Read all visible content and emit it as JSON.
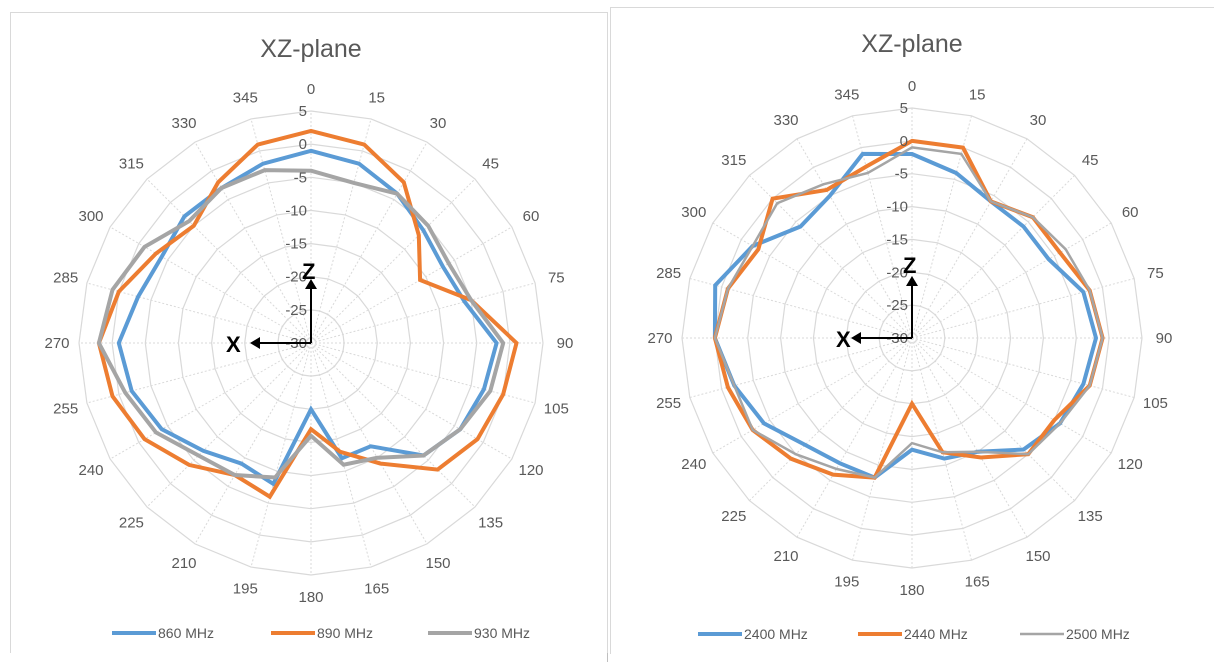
{
  "chart_data": [
    {
      "type": "radar",
      "title": "XZ-plane",
      "angle_labels": [
        "0",
        "15",
        "30",
        "45",
        "60",
        "75",
        "90",
        "105",
        "120",
        "135",
        "150",
        "165",
        "180",
        "195",
        "210",
        "225",
        "240",
        "255",
        "270",
        "285",
        "300",
        "315",
        "330",
        "345"
      ],
      "radial_labels": [
        "5",
        "0",
        "-5",
        "-10",
        "-15",
        "-20",
        "-25",
        "-30"
      ],
      "rlim": [
        -30,
        5
      ],
      "axis_letters": [
        "Z",
        "X"
      ],
      "series": [
        {
          "name": "860 MHz",
          "color": "#5b9bd5",
          "values": [
            -1,
            -2,
            -4,
            -6,
            -7,
            -6,
            -2,
            -3,
            -4,
            -6,
            -12,
            -12,
            -20,
            -8,
            -9,
            -7,
            -4,
            -2,
            -1,
            -3,
            -4,
            -3,
            -3,
            -2
          ]
        },
        {
          "name": "890 MHz",
          "color": "#ed7d31",
          "values": [
            2,
            1,
            -2,
            -7,
            -11,
            -5,
            1,
            0,
            -1,
            -3,
            -9,
            -13,
            -17,
            -6,
            -7,
            -4,
            -1,
            1,
            2,
            0,
            -3,
            -5,
            -2,
            1
          ]
        },
        {
          "name": "930 MHz",
          "color": "#a5a5a5",
          "values": [
            -4,
            -5,
            -4,
            -5,
            -6,
            -5,
            -1,
            -2,
            -4,
            -6,
            -10,
            -11,
            -16,
            -9,
            -7,
            -6,
            -3,
            -1,
            2,
            1,
            -1,
            -4,
            -3,
            -3
          ]
        }
      ]
    },
    {
      "type": "radar",
      "title": "XZ-plane",
      "angle_labels": [
        "0",
        "15",
        "30",
        "45",
        "60",
        "75",
        "90",
        "105",
        "120",
        "135",
        "150",
        "165",
        "180",
        "195",
        "210",
        "225",
        "240",
        "255",
        "270",
        "285",
        "300",
        "315",
        "330",
        "345"
      ],
      "radial_labels": [
        "5",
        "0",
        "-5",
        "-10",
        "-15",
        "-20",
        "-25",
        "-30"
      ],
      "rlim": [
        -30,
        5
      ],
      "axis_letters": [
        "Z",
        "X"
      ],
      "series": [
        {
          "name": "2400 MHz",
          "color": "#5b9bd5",
          "values": [
            -2,
            -4,
            -6,
            -6,
            -6,
            -3,
            -2,
            -3,
            -4,
            -6,
            -10,
            -11,
            -13,
            -8,
            -8,
            -7,
            -4,
            -2,
            0,
            1,
            -2,
            -6,
            -5,
            -1
          ]
        },
        {
          "name": "2440 MHz",
          "color": "#ed7d31",
          "values": [
            0,
            0,
            -6,
            -4,
            -4,
            -2,
            -1,
            -2,
            -5,
            -5,
            -9,
            -12,
            -20,
            -8,
            -6,
            -4,
            -2,
            -1,
            0,
            -1,
            -3,
            0,
            -4,
            -3
          ]
        },
        {
          "name": "2500 MHz",
          "color": "#a5a5a5",
          "values": [
            -1,
            -1,
            -6,
            -4,
            -3,
            -2,
            -1,
            -2,
            -4,
            -5,
            -10,
            -12,
            -14,
            -8,
            -7,
            -5,
            -2,
            -2,
            0,
            -1,
            -2,
            -1,
            -3,
            -4
          ]
        }
      ]
    }
  ]
}
